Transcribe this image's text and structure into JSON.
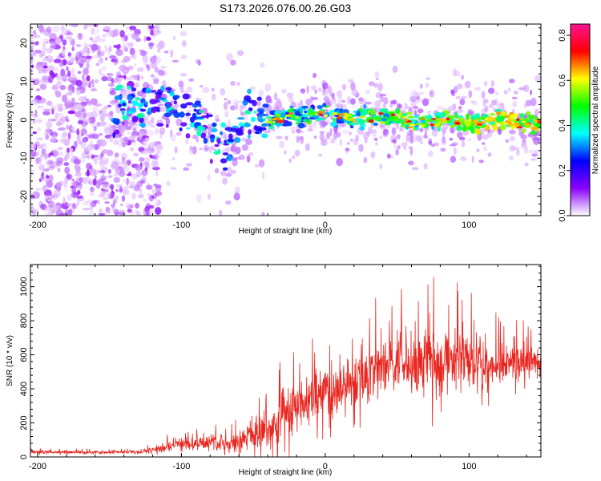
{
  "figure_title": "S173.2026.076.00.26.G03",
  "chart_data": [
    {
      "type": "heatmap",
      "title": "S173.2026.076.00.26.G03",
      "xlabel": "Height of straight line (km)",
      "ylabel": "Frequency (Hz)",
      "xlim": [
        -205,
        150
      ],
      "ylim": [
        -25,
        25
      ],
      "xticks": [
        -200,
        -100,
        0,
        100
      ],
      "yticks": [
        -20,
        -10,
        0,
        10,
        20
      ],
      "colorbar": {
        "label": "Normalized spectral amplitude",
        "range": [
          0.0,
          0.85
        ],
        "ticks": [
          0.0,
          0.2,
          0.4,
          0.6,
          0.8
        ],
        "colormap": [
          "#ffffff",
          "#8b00ff",
          "#0000ff",
          "#00ffff",
          "#00ff00",
          "#ffff00",
          "#ff0000",
          "#ff1493"
        ]
      },
      "ridge": [
        {
          "x": -145,
          "y": 4
        },
        {
          "x": -130,
          "y": 3
        },
        {
          "x": -110,
          "y": 4
        },
        {
          "x": -100,
          "y": 3
        },
        {
          "x": -90,
          "y": 1
        },
        {
          "x": -80,
          "y": -3
        },
        {
          "x": -70,
          "y": -8
        },
        {
          "x": -55,
          "y": 2
        },
        {
          "x": -45,
          "y": 0
        },
        {
          "x": -35,
          "y": 0
        },
        {
          "x": -20,
          "y": 1
        },
        {
          "x": -10,
          "y": 1
        },
        {
          "x": 0,
          "y": 2
        },
        {
          "x": 20,
          "y": 0
        },
        {
          "x": 40,
          "y": 1
        },
        {
          "x": 60,
          "y": -1
        },
        {
          "x": 80,
          "y": 0
        },
        {
          "x": 100,
          "y": -1
        },
        {
          "x": 120,
          "y": 0
        },
        {
          "x": 140,
          "y": -1
        }
      ]
    },
    {
      "type": "line",
      "xlabel": "Height of straight line (km)",
      "ylabel": "SNR (10 * v/v)",
      "xlim": [
        -205,
        150
      ],
      "ylim": [
        0,
        1130
      ],
      "xticks": [
        -200,
        -100,
        0,
        100
      ],
      "yticks": [
        0,
        200,
        400,
        600,
        800,
        1000
      ],
      "color": "#e8261f",
      "series": [
        {
          "name": "SNR",
          "x": [
            -205,
            -190,
            -170,
            -150,
            -130,
            -120,
            -110,
            -100,
            -90,
            -80,
            -70,
            -60,
            -50,
            -40,
            -30,
            -20,
            -10,
            0,
            10,
            20,
            30,
            40,
            50,
            60,
            70,
            80,
            90,
            100,
            110,
            120,
            130,
            140,
            150
          ],
          "mean": [
            30,
            28,
            27,
            27,
            30,
            40,
            60,
            75,
            80,
            85,
            75,
            90,
            120,
            170,
            220,
            300,
            330,
            390,
            400,
            430,
            500,
            520,
            540,
            560,
            580,
            590,
            580,
            570,
            550,
            540,
            550,
            560,
            560
          ],
          "amp": [
            10,
            8,
            8,
            8,
            10,
            15,
            25,
            35,
            45,
            45,
            40,
            50,
            80,
            100,
            130,
            150,
            150,
            150,
            130,
            140,
            150,
            160,
            170,
            180,
            200,
            190,
            170,
            160,
            150,
            120,
            100,
            90,
            90
          ]
        }
      ]
    }
  ]
}
